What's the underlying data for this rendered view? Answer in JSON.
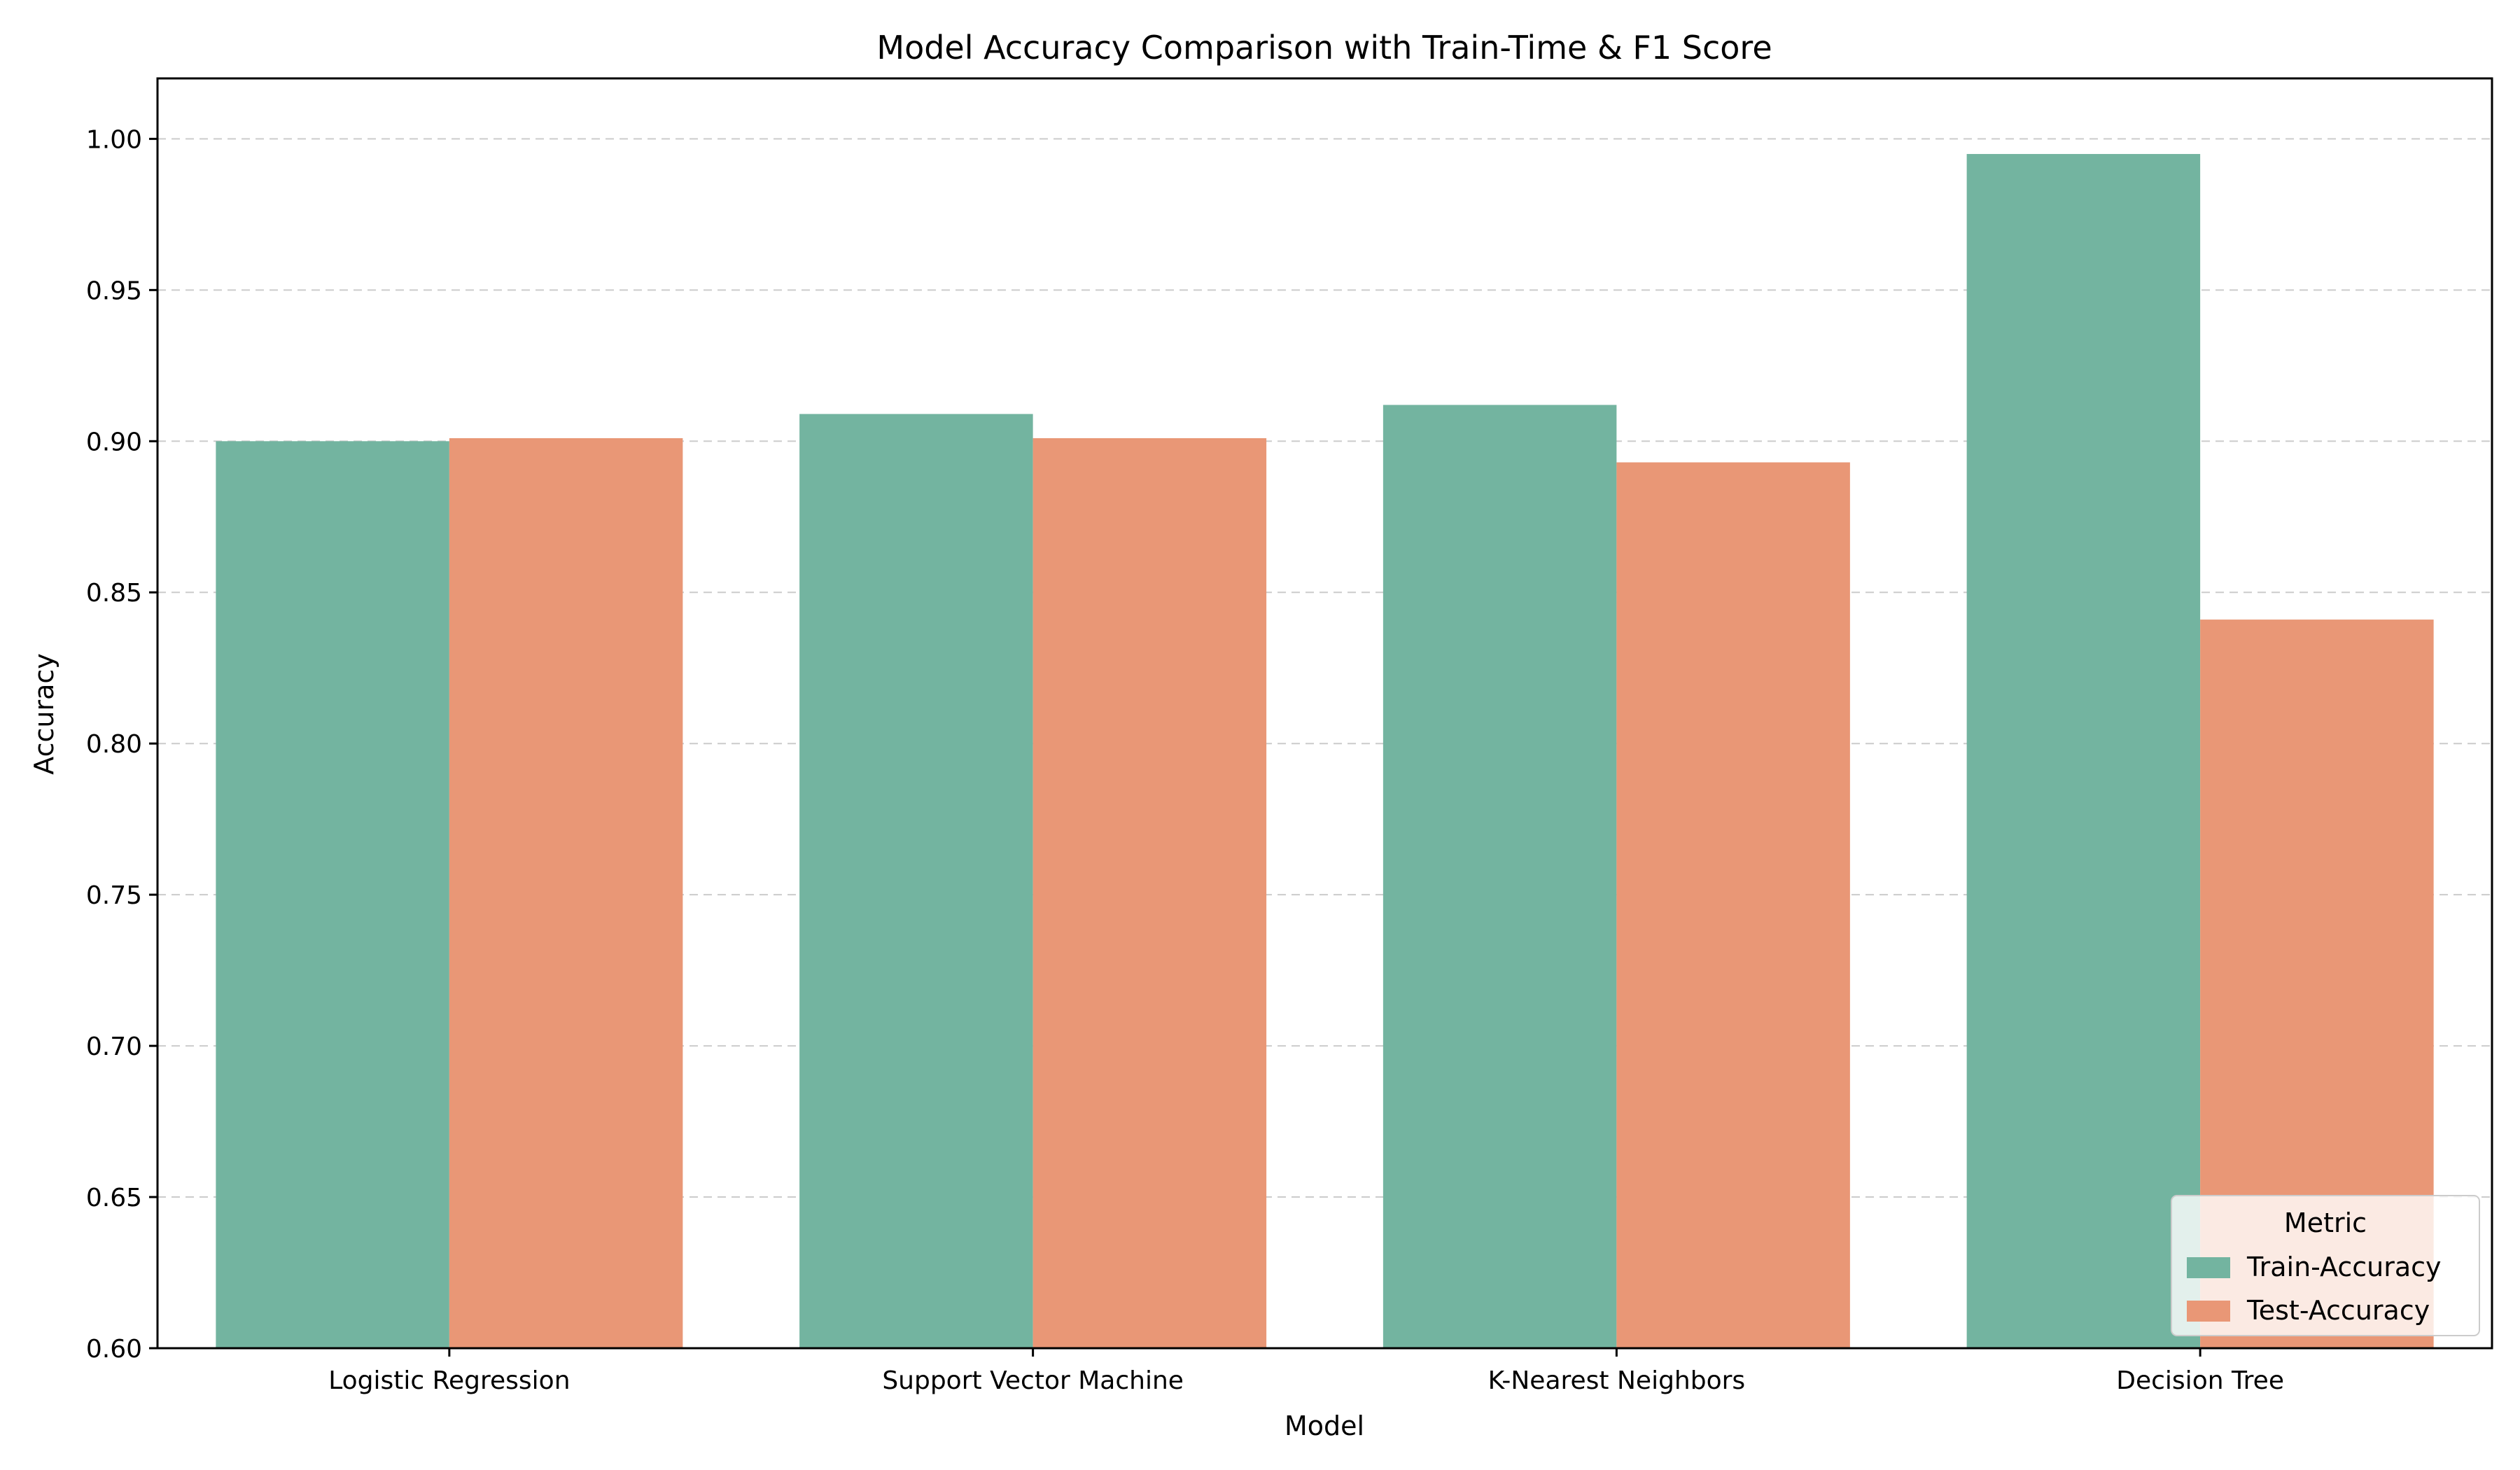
{
  "chart_data": {
    "type": "bar",
    "title": "Model Accuracy Comparison with Train-Time & F1 Score",
    "xlabel": "Model",
    "ylabel": "Accuracy",
    "categories": [
      "Logistic Regression",
      "Support Vector Machine",
      "K-Nearest Neighbors",
      "Decision Tree"
    ],
    "series": [
      {
        "name": "Train-Accuracy",
        "color": "#73b4a0",
        "values": [
          0.9,
          0.909,
          0.912,
          0.995
        ]
      },
      {
        "name": "Test-Accuracy",
        "color": "#e99776",
        "values": [
          0.901,
          0.901,
          0.893,
          0.841
        ]
      }
    ],
    "ylim": [
      0.6,
      1.02
    ],
    "yticks": [
      "0.60",
      "0.65",
      "0.70",
      "0.75",
      "0.80",
      "0.85",
      "0.90",
      "0.95",
      "1.00"
    ],
    "grid": true,
    "legend": {
      "title": "Metric",
      "placement": "bottom-right"
    }
  }
}
